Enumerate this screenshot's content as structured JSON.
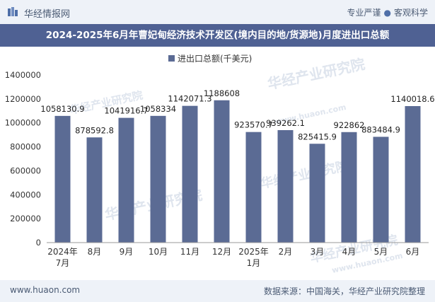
{
  "header": {
    "brand": "华经情报网",
    "tagline_left": "专业严谨",
    "tagline_right": "客观科学",
    "title": "2024-2025年6月年曹妃甸经济技术开发区(境内目的地/货源地)月度进出口总额"
  },
  "footer": {
    "site": "www.huaon.com",
    "source": "数据来源：中国海关，华经产业研究院整理"
  },
  "watermark": {
    "text": "华经产业研究院",
    "url": "www.huaon.com"
  },
  "colors": {
    "bar": "#5b6b94",
    "title_bg": "#4f6193",
    "topbar_bg": "#eef2f8"
  },
  "chart_data": {
    "type": "bar",
    "categories": [
      "2024年\n7月",
      "8月",
      "9月",
      "10月",
      "11月",
      "12月",
      "2025年\n1月",
      "2月",
      "3月",
      "4月",
      "5月",
      "6月"
    ],
    "series": [
      {
        "name": "进出口总额(千美元)",
        "values": [
          1058130.9,
          878592.8,
          1041916.7,
          1058334,
          1142071.3,
          1188608,
          923570.7,
          939262.1,
          825415.9,
          922862,
          883484.9,
          1140018.6
        ]
      }
    ],
    "value_labels": [
      "1058130.9",
      "878592.8",
      "1041916.7",
      "1058334",
      "1142071.3",
      "1188608",
      "923570.7",
      "939262.1",
      "825415.9",
      "922862",
      "883484.9",
      "1140018.6"
    ],
    "yticks": [
      "0",
      "200000",
      "400000",
      "600000",
      "800000",
      "1000000",
      "1200000",
      "1400000"
    ],
    "ylim": [
      0,
      1400000
    ],
    "legend": "top-center",
    "grid": false
  }
}
